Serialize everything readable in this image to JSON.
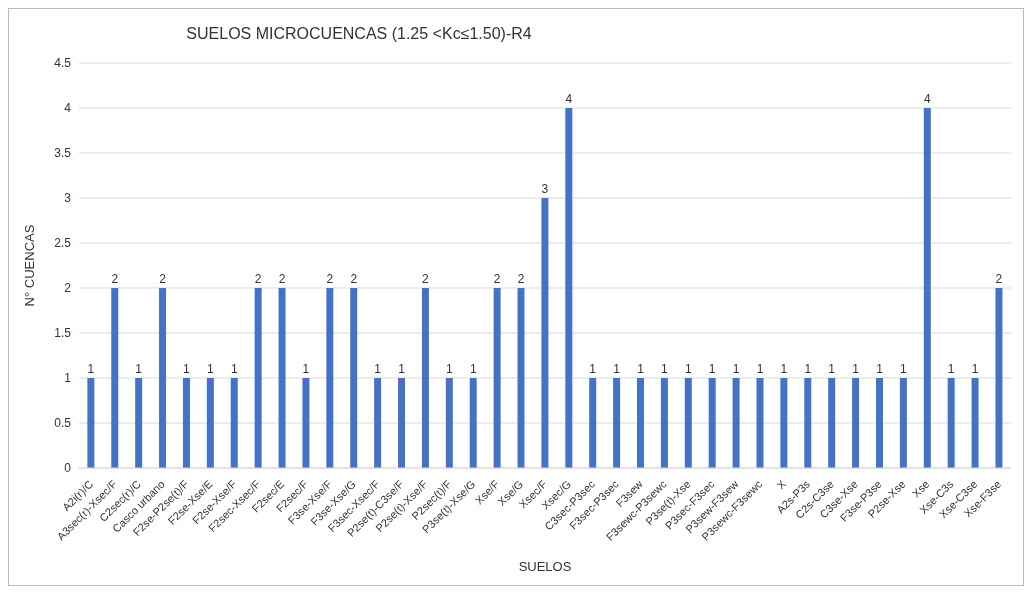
{
  "chart_data": {
    "type": "bar",
    "title": "SUELOS MICROCUENCAS (1.25 <Kc≤1.50)-R4",
    "xlabel": "SUELOS",
    "ylabel": "N° CUENCAS",
    "categories": [
      "A2i(r)/C",
      "A3sec(r)-Xsec/F",
      "C2sec(r)/C",
      "Casco urbano",
      "F2se-P2se(t)/F",
      "F2se-Xse/E",
      "F2se-Xse/F",
      "F2sec-Xsec/F",
      "F2sec/E",
      "F2sec/F",
      "F3se-Xse/F",
      "F3se-Xse/G",
      "F3sec-Xsec/F",
      "P2se(t)-C3se/F",
      "P2se(t)-Xse/F",
      "P2sec(t)/F",
      "P3se(t)-Xse/G",
      "Xse/F",
      "Xse/G",
      "Xsec/F",
      "Xsec/G",
      "C3sec-P3sec",
      "F3sec-P3sec",
      "F3sew",
      "F3sewc-P3sewc",
      "P3se(t)-Xse",
      "P3sec-F3sec",
      "P3sew-F3sew",
      "P3sewc-F3sewc",
      "X",
      "A2s-P3s",
      "C2s-C3se",
      "C3se-Xse",
      "F3se-P3se",
      "P2se-Xse",
      "Xse",
      "Xse-C3s",
      "Xse-C3se",
      "Xse-F3se"
    ],
    "values": [
      1,
      2,
      1,
      2,
      1,
      1,
      1,
      2,
      2,
      1,
      2,
      2,
      1,
      1,
      2,
      1,
      1,
      2,
      2,
      3,
      4,
      1,
      1,
      1,
      1,
      1,
      1,
      1,
      1,
      1,
      1,
      1,
      1,
      1,
      1,
      4,
      1,
      1,
      2
    ],
    "color": "#4472c4",
    "ylim": [
      0,
      4.5
    ],
    "yticks": [
      0,
      0.5,
      1,
      1.5,
      2,
      2.5,
      3,
      3.5,
      4,
      4.5
    ],
    "grid": "y",
    "data_labels": true
  }
}
